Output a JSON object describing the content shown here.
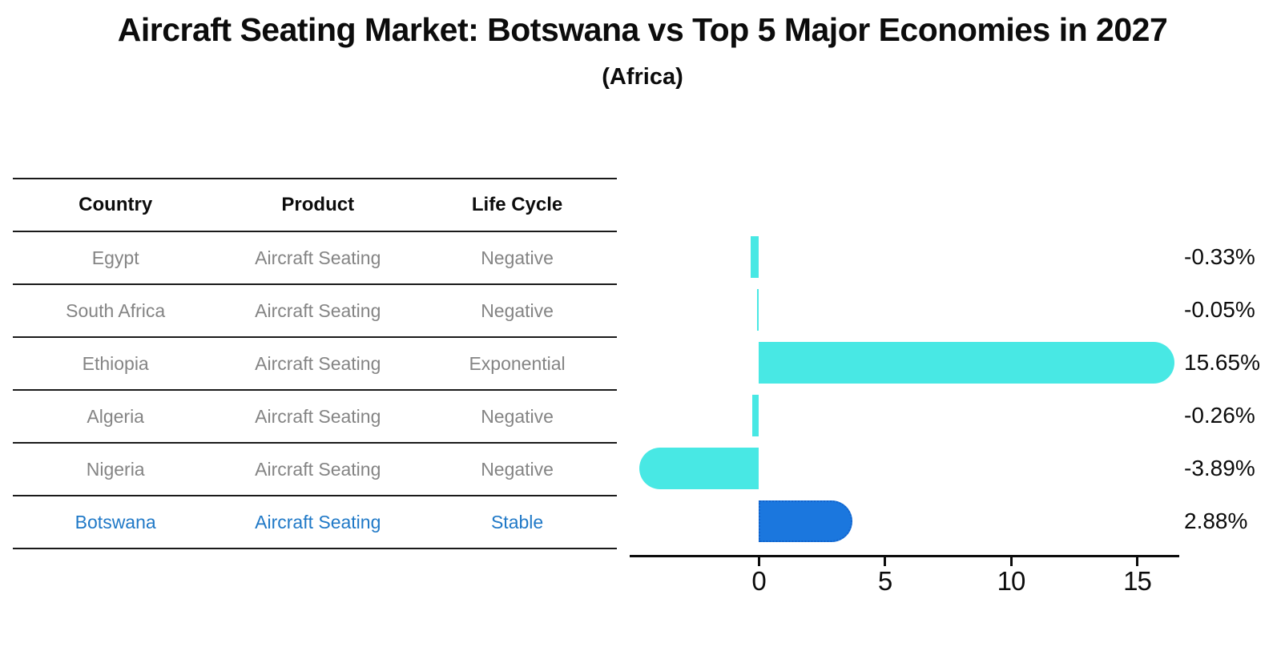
{
  "title": "Aircraft Seating Market: Botswana vs Top 5 Major Economies in 2027",
  "subtitle": "(Africa)",
  "table": {
    "headers": [
      "Country",
      "Product",
      "Life Cycle"
    ],
    "rows": [
      {
        "country": "Egypt",
        "product": "Aircraft Seating",
        "life_cycle": "Negative",
        "highlight": false
      },
      {
        "country": "South Africa",
        "product": "Aircraft Seating",
        "life_cycle": "Negative",
        "highlight": false
      },
      {
        "country": "Ethiopia",
        "product": "Aircraft Seating",
        "life_cycle": "Exponential",
        "highlight": false
      },
      {
        "country": "Algeria",
        "product": "Aircraft Seating",
        "life_cycle": "Negative",
        "highlight": false
      },
      {
        "country": "Nigeria",
        "product": "Aircraft Seating",
        "life_cycle": "Negative",
        "highlight": false
      },
      {
        "country": "Botswana",
        "product": "Aircraft Seating",
        "life_cycle": "Stable",
        "highlight": true
      }
    ]
  },
  "chart_data": {
    "type": "bar",
    "orientation": "horizontal",
    "title": "Aircraft Seating Market: Botswana vs Top 5 Major Economies in 2027 (Africa)",
    "categories": [
      "Egypt",
      "South Africa",
      "Ethiopia",
      "Algeria",
      "Nigeria",
      "Botswana"
    ],
    "values": [
      -0.33,
      -0.05,
      15.65,
      -0.26,
      -3.89,
      2.88
    ],
    "labels": [
      "-0.33%",
      "-0.05%",
      "15.65%",
      "-0.26%",
      "-3.89%",
      "2.88%"
    ],
    "unit": "%",
    "x_ticks": [
      0,
      5,
      10,
      15
    ],
    "xlim": [
      -4.9,
      16.7
    ],
    "grid": false,
    "legend": false,
    "highlight_index": 5,
    "bar_color": "#48e8e4",
    "highlight_color": "#1b77de",
    "highlight_border_color": "#1263cc",
    "text_color": "#0c0c0c",
    "muted_text_color": "#848484",
    "highlight_text_color": "#2079c7"
  }
}
